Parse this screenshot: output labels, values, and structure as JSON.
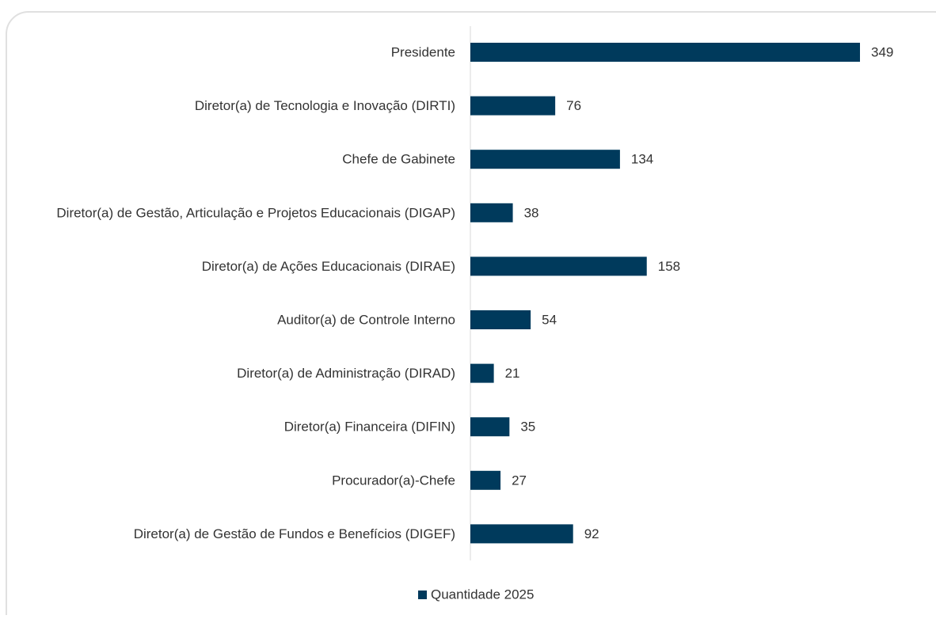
{
  "chart_data": {
    "type": "barh",
    "categories": [
      "Presidente",
      "Diretor(a) de Tecnologia e Inovação (DIRTI)",
      "Chefe de Gabinete",
      "Diretor(a) de Gestão, Articulação e Projetos Educacionais (DIGAP)",
      "Diretor(a) de Ações Educacionais (DIRAE)",
      "Auditor(a) de Controle Interno",
      "Diretor(a) de Administração (DIRAD)",
      "Diretor(a) Financeira (DIFIN)",
      "Procurador(a)-Chefe",
      "Diretor(a) de Gestão de Fundos e Benefícios (DIGEF)"
    ],
    "series": [
      {
        "name": "Quantidade 2025",
        "color": "#003a5c",
        "values": [
          349,
          76,
          134,
          38,
          158,
          54,
          21,
          35,
          27,
          92
        ]
      }
    ],
    "legend": "bottom"
  }
}
